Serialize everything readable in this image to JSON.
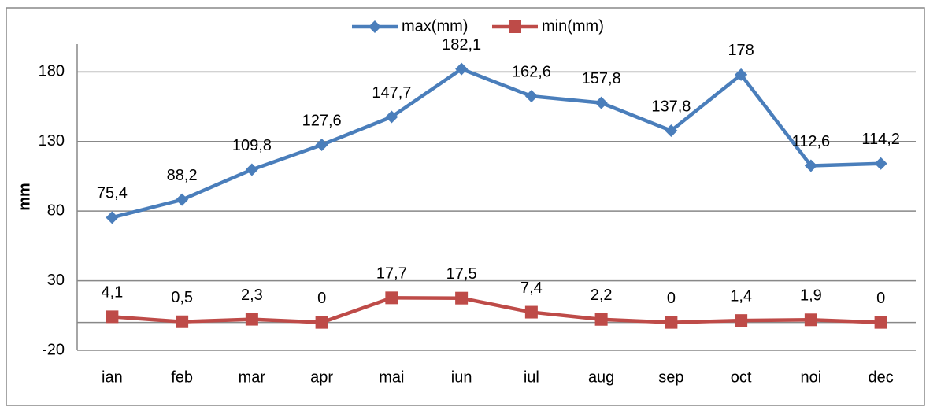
{
  "chart_data": {
    "type": "line",
    "y_label": "mm",
    "categories": [
      "ian",
      "feb",
      "mar",
      "apr",
      "mai",
      "iun",
      "iul",
      "aug",
      "sep",
      "oct",
      "noi",
      "dec"
    ],
    "series": [
      {
        "name": "max(mm)",
        "color": "#4a7ebb",
        "marker": "diamond",
        "values": [
          75.4,
          88.2,
          109.8,
          127.6,
          147.7,
          182.1,
          162.6,
          157.8,
          137.8,
          178,
          112.6,
          114.2
        ],
        "value_labels": [
          "75,4",
          "88,2",
          "109,8",
          "127,6",
          "147,7",
          "182,1",
          "162,6",
          "157,8",
          "137,8",
          "178",
          "112,6",
          "114,2"
        ]
      },
      {
        "name": "min(mm)",
        "color": "#be4b48",
        "marker": "square",
        "values": [
          4.1,
          0.5,
          2.3,
          0,
          17.7,
          17.5,
          7.4,
          2.2,
          0,
          1.4,
          1.9,
          0
        ],
        "value_labels": [
          "4,1",
          "0,5",
          "2,3",
          "0",
          "17,7",
          "17,5",
          "7,4",
          "2,2",
          "0",
          "1,4",
          "1,9",
          "0"
        ]
      }
    ],
    "ylim": [
      -20,
      200
    ],
    "yticks": [
      -20,
      30,
      80,
      130,
      180
    ],
    "grid": true,
    "legend": "top"
  }
}
